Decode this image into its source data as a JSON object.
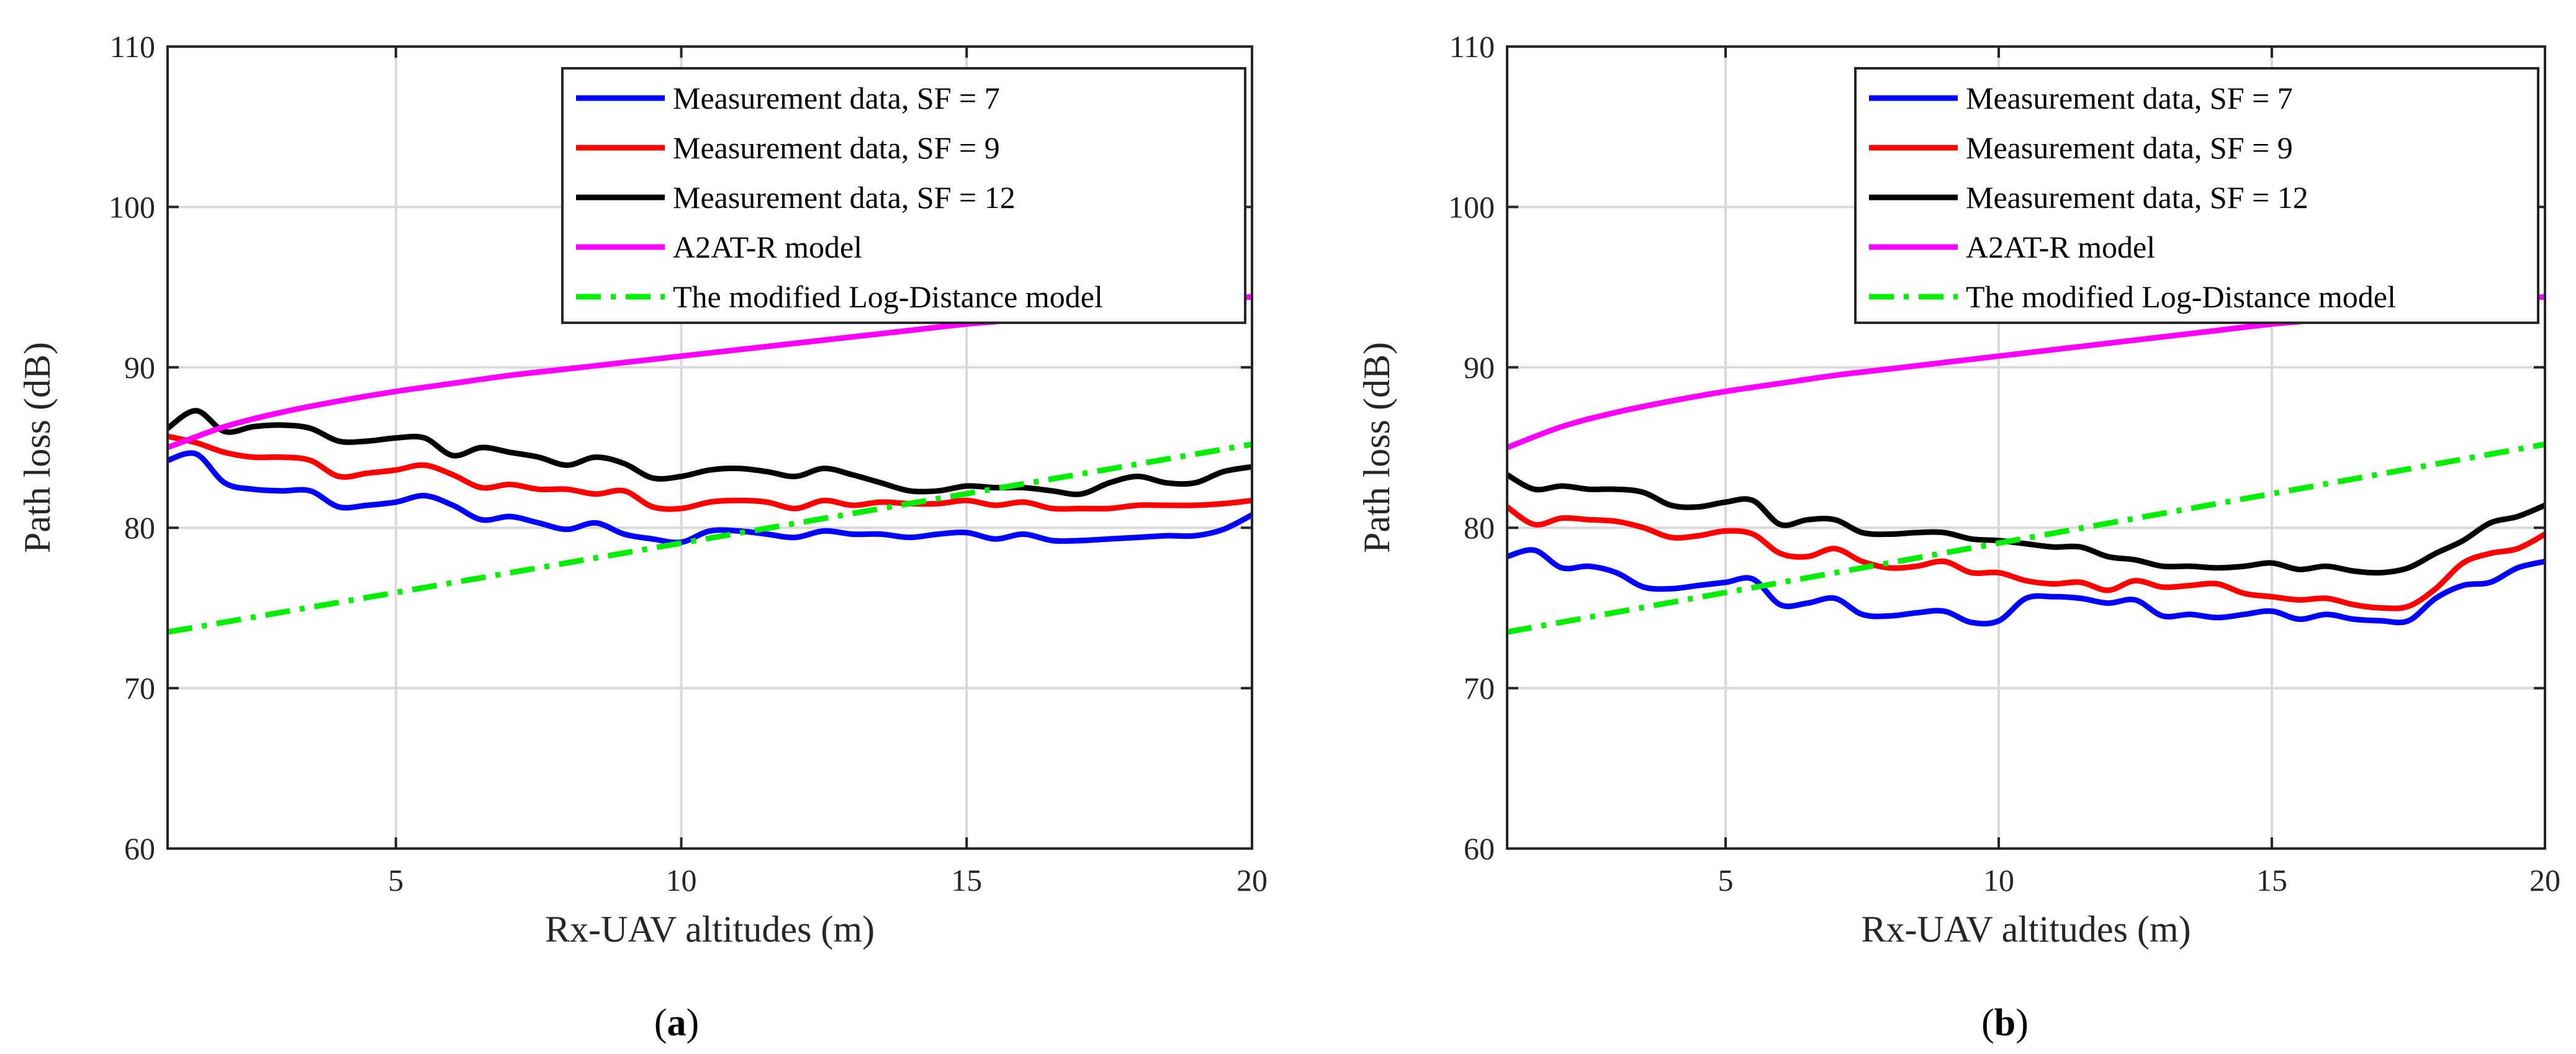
{
  "chart_data": [
    {
      "type": "line",
      "panel_label": "a",
      "title": "",
      "xlabel": "Rx-UAV altitudes (m)",
      "ylabel": "Path loss (dB)",
      "xlim": [
        1,
        20
      ],
      "ylim": [
        60,
        110
      ],
      "xticks": [
        5,
        10,
        15,
        20
      ],
      "yticks": [
        60,
        70,
        80,
        90,
        100,
        110
      ],
      "grid": true,
      "legend_position": "top-right",
      "series": [
        {
          "name": "Measurement data, SF = 7",
          "color": "#0000ff",
          "style": "solid",
          "x": [
            1,
            1.5,
            2,
            2.5,
            3,
            3.5,
            4,
            4.5,
            5,
            5.5,
            6,
            6.5,
            7,
            7.5,
            8,
            8.5,
            9,
            9.5,
            10,
            10.5,
            11,
            11.5,
            12,
            12.5,
            13,
            13.5,
            14,
            14.5,
            15,
            15.5,
            16,
            16.5,
            17,
            17.5,
            18,
            18.5,
            19,
            19.5,
            20
          ],
          "y": [
            84.2,
            84.6,
            82.8,
            82.4,
            82.3,
            82.3,
            81.3,
            81.4,
            81.6,
            82.0,
            81.4,
            80.5,
            80.7,
            80.3,
            79.9,
            80.3,
            79.6,
            79.3,
            79.1,
            79.8,
            79.8,
            79.6,
            79.4,
            79.8,
            79.6,
            79.6,
            79.4,
            79.6,
            79.7,
            79.3,
            79.6,
            79.2,
            79.2,
            79.3,
            79.4,
            79.5,
            79.5,
            79.9,
            80.8
          ]
        },
        {
          "name": "Measurement data, SF = 9",
          "color": "#ff0000",
          "style": "solid",
          "x": [
            1,
            1.5,
            2,
            2.5,
            3,
            3.5,
            4,
            4.5,
            5,
            5.5,
            6,
            6.5,
            7,
            7.5,
            8,
            8.5,
            9,
            9.5,
            10,
            10.5,
            11,
            11.5,
            12,
            12.5,
            13,
            13.5,
            14,
            14.5,
            15,
            15.5,
            16,
            16.5,
            17,
            17.5,
            18,
            18.5,
            19,
            19.5,
            20
          ],
          "y": [
            85.7,
            85.3,
            84.7,
            84.4,
            84.4,
            84.2,
            83.2,
            83.4,
            83.6,
            83.9,
            83.3,
            82.5,
            82.7,
            82.4,
            82.4,
            82.1,
            82.3,
            81.3,
            81.2,
            81.6,
            81.7,
            81.6,
            81.2,
            81.7,
            81.4,
            81.6,
            81.5,
            81.5,
            81.7,
            81.4,
            81.6,
            81.2,
            81.2,
            81.2,
            81.4,
            81.4,
            81.4,
            81.5,
            81.7
          ]
        },
        {
          "name": "Measurement data, SF = 12",
          "color": "#000000",
          "style": "solid",
          "x": [
            1,
            1.5,
            2,
            2.5,
            3,
            3.5,
            4,
            4.5,
            5,
            5.5,
            6,
            6.5,
            7,
            7.5,
            8,
            8.5,
            9,
            9.5,
            10,
            10.5,
            11,
            11.5,
            12,
            12.5,
            13,
            13.5,
            14,
            14.5,
            15,
            15.5,
            16,
            16.5,
            17,
            17.5,
            18,
            18.5,
            19,
            19.5,
            20
          ],
          "y": [
            86.2,
            87.3,
            86.0,
            86.3,
            86.4,
            86.2,
            85.4,
            85.4,
            85.6,
            85.6,
            84.5,
            85.0,
            84.7,
            84.4,
            83.9,
            84.4,
            84.0,
            83.1,
            83.2,
            83.6,
            83.7,
            83.5,
            83.2,
            83.7,
            83.3,
            82.8,
            82.3,
            82.3,
            82.6,
            82.5,
            82.5,
            82.3,
            82.1,
            82.8,
            83.2,
            82.8,
            82.8,
            83.5,
            83.8
          ]
        },
        {
          "name": "A2AT-R model",
          "color": "#ff00ff",
          "style": "solid",
          "x": [
            1,
            2,
            3,
            4,
            5,
            6,
            7,
            8,
            9,
            10,
            11,
            12,
            13,
            14,
            15,
            16,
            17,
            18,
            19,
            20
          ],
          "y": [
            85.0,
            86.3,
            87.2,
            87.9,
            88.5,
            89.0,
            89.5,
            89.9,
            90.3,
            90.7,
            91.1,
            91.5,
            91.9,
            92.3,
            92.7,
            93.0,
            93.4,
            93.8,
            94.1,
            94.4
          ]
        },
        {
          "name": "The modified Log-Distance model",
          "color": "#00ee00",
          "style": "dashdot",
          "x": [
            1,
            20
          ],
          "y": [
            73.5,
            85.2
          ]
        }
      ]
    },
    {
      "type": "line",
      "panel_label": "b",
      "title": "",
      "xlabel": "Rx-UAV altitudes (m)",
      "ylabel": "Path loss (dB)",
      "xlim": [
        1,
        20
      ],
      "ylim": [
        60,
        110
      ],
      "xticks": [
        5,
        10,
        15,
        20
      ],
      "yticks": [
        60,
        70,
        80,
        90,
        100,
        110
      ],
      "grid": true,
      "legend_position": "top-right",
      "series": [
        {
          "name": "Measurement data, SF = 7",
          "color": "#0000ff",
          "style": "solid",
          "x": [
            1,
            1.5,
            2,
            2.5,
            3,
            3.5,
            4,
            4.5,
            5,
            5.5,
            6,
            6.5,
            7,
            7.5,
            8,
            8.5,
            9,
            9.5,
            10,
            10.5,
            11,
            11.5,
            12,
            12.5,
            13,
            13.5,
            14,
            14.5,
            15,
            15.5,
            16,
            16.5,
            17,
            17.5,
            18,
            18.5,
            19,
            19.5,
            20
          ],
          "y": [
            78.2,
            78.6,
            77.5,
            77.6,
            77.2,
            76.3,
            76.2,
            76.4,
            76.6,
            76.8,
            75.2,
            75.3,
            75.6,
            74.6,
            74.5,
            74.7,
            74.8,
            74.1,
            74.2,
            75.6,
            75.7,
            75.6,
            75.3,
            75.5,
            74.5,
            74.6,
            74.4,
            74.6,
            74.8,
            74.3,
            74.6,
            74.3,
            74.2,
            74.2,
            75.6,
            76.4,
            76.6,
            77.5,
            77.9
          ]
        },
        {
          "name": "Measurement data, SF = 9",
          "color": "#ff0000",
          "style": "solid",
          "x": [
            1,
            1.5,
            2,
            2.5,
            3,
            3.5,
            4,
            4.5,
            5,
            5.5,
            6,
            6.5,
            7,
            7.5,
            8,
            8.5,
            9,
            9.5,
            10,
            10.5,
            11,
            11.5,
            12,
            12.5,
            13,
            13.5,
            14,
            14.5,
            15,
            15.5,
            16,
            16.5,
            17,
            17.5,
            18,
            18.5,
            19,
            19.5,
            20
          ],
          "y": [
            81.3,
            80.2,
            80.6,
            80.5,
            80.4,
            80.0,
            79.4,
            79.5,
            79.8,
            79.6,
            78.4,
            78.2,
            78.7,
            77.9,
            77.5,
            77.6,
            77.9,
            77.2,
            77.2,
            76.7,
            76.5,
            76.6,
            76.1,
            76.7,
            76.3,
            76.4,
            76.5,
            75.9,
            75.7,
            75.5,
            75.6,
            75.2,
            75.0,
            75.1,
            76.2,
            77.8,
            78.4,
            78.7,
            79.6
          ]
        },
        {
          "name": "Measurement data, SF = 12",
          "color": "#000000",
          "style": "solid",
          "x": [
            1,
            1.5,
            2,
            2.5,
            3,
            3.5,
            4,
            4.5,
            5,
            5.5,
            6,
            6.5,
            7,
            7.5,
            8,
            8.5,
            9,
            9.5,
            10,
            10.5,
            11,
            11.5,
            12,
            12.5,
            13,
            13.5,
            14,
            14.5,
            15,
            15.5,
            16,
            16.5,
            17,
            17.5,
            18,
            18.5,
            19,
            19.5,
            20
          ],
          "y": [
            83.3,
            82.4,
            82.6,
            82.4,
            82.4,
            82.2,
            81.4,
            81.3,
            81.6,
            81.7,
            80.2,
            80.5,
            80.5,
            79.7,
            79.6,
            79.7,
            79.7,
            79.3,
            79.2,
            79.0,
            78.8,
            78.8,
            78.2,
            78.0,
            77.6,
            77.6,
            77.5,
            77.6,
            77.8,
            77.4,
            77.6,
            77.3,
            77.2,
            77.5,
            78.4,
            79.2,
            80.3,
            80.7,
            81.4
          ]
        },
        {
          "name": "A2AT-R model",
          "color": "#ff00ff",
          "style": "solid",
          "x": [
            1,
            2,
            3,
            4,
            5,
            6,
            7,
            8,
            9,
            10,
            11,
            12,
            13,
            14,
            15,
            16,
            17,
            18,
            19,
            20
          ],
          "y": [
            85.0,
            86.3,
            87.2,
            87.9,
            88.5,
            89.0,
            89.5,
            89.9,
            90.3,
            90.7,
            91.1,
            91.5,
            91.9,
            92.3,
            92.7,
            93.0,
            93.4,
            93.8,
            94.1,
            94.4
          ]
        },
        {
          "name": "The modified Log-Distance model",
          "color": "#00ee00",
          "style": "dashdot",
          "x": [
            1,
            20
          ],
          "y": [
            73.5,
            85.2
          ]
        }
      ]
    }
  ]
}
